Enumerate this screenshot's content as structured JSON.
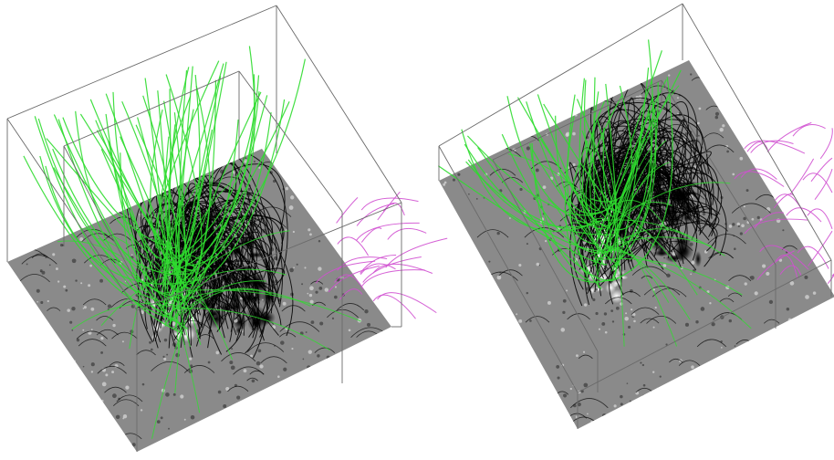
{
  "panels": [
    {
      "id": "left",
      "field_line_sets": [
        {
          "name": "closed-loops",
          "color": "#000000",
          "count": 140
        },
        {
          "name": "open-lines-green",
          "color": "#2fdc2f",
          "count": 60
        },
        {
          "name": "open-lines-magenta",
          "color": "#d050d0",
          "count": 22
        }
      ]
    },
    {
      "id": "right",
      "field_line_sets": [
        {
          "name": "closed-loops",
          "color": "#000000",
          "count": 150
        },
        {
          "name": "open-lines-green",
          "color": "#2fdc2f",
          "count": 45
        },
        {
          "name": "open-lines-magenta",
          "color": "#d050d0",
          "count": 25
        }
      ]
    }
  ],
  "colors": {
    "background": "#ffffff",
    "magnetogram_gray": "#8a8a8a",
    "box_edge": "#6a6a6a",
    "positive_polarity": "#ffffff",
    "negative_polarity": "#111111"
  }
}
